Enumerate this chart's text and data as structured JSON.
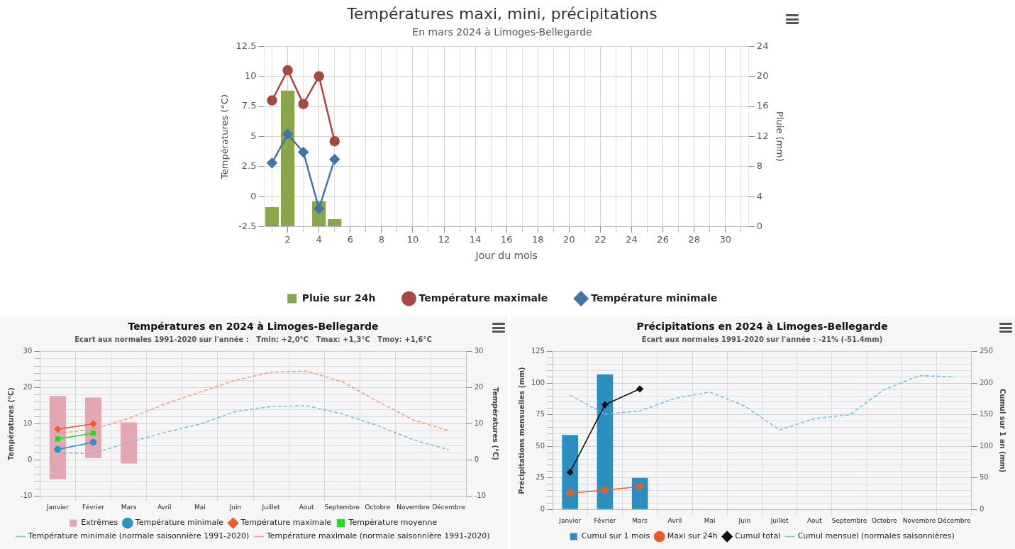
{
  "chart_data": [
    {
      "type": "line",
      "title": "Températures maxi, mini, précipitations",
      "subtitle": "En mars 2024 à Limoges-Bellegarde",
      "xlabel": "Jour du mois",
      "ylabel": "Températures (°C)",
      "y2label": "Pluie (mm)",
      "x": [
        1,
        2,
        3,
        4,
        5
      ],
      "xlim": [
        0.5,
        31.5
      ],
      "xticks": [
        {
          "value": 1,
          "label": null
        },
        2,
        {
          "value": 3,
          "label": null
        },
        4,
        {
          "value": 5,
          "label": null
        },
        6,
        {
          "value": 7,
          "label": null
        },
        8,
        {
          "value": 9,
          "label": null
        },
        10,
        {
          "value": 11,
          "label": null
        },
        12,
        {
          "value": 13,
          "label": null
        },
        14,
        {
          "value": 15,
          "label": null
        },
        16,
        {
          "value": 17,
          "label": null
        },
        18,
        {
          "value": 19,
          "label": null
        },
        20,
        {
          "value": 21,
          "label": null
        },
        22,
        {
          "value": 23,
          "label": null
        },
        24,
        {
          "value": 25,
          "label": null
        },
        26,
        {
          "value": 27,
          "label": null
        },
        28,
        {
          "value": 29,
          "label": null
        },
        30,
        {
          "value": 31,
          "label": null
        }
      ],
      "ylim": [
        -2.5,
        12.5
      ],
      "yticks": [
        -2.5,
        0,
        2.5,
        5,
        7.5,
        10,
        12.5
      ],
      "y2lim": [
        0,
        24
      ],
      "y2ticks": [
        0,
        4,
        8,
        12,
        16,
        20,
        24
      ],
      "grid": true,
      "legend": "bottom",
      "series": [
        {
          "name": "Pluie sur 24h",
          "type": "bar",
          "axis": "y2",
          "color": "#8aa64a",
          "values": [
            2.6,
            18.1,
            0,
            3.4,
            1.0
          ]
        },
        {
          "name": "Température maximale",
          "color": "#aa4643",
          "marker": "circle",
          "values": [
            8.0,
            10.5,
            7.7,
            10.0,
            4.6
          ]
        },
        {
          "name": "Température minimale",
          "color": "#4572a7",
          "marker": "diamond",
          "values": [
            2.8,
            5.2,
            3.7,
            -1.0,
            3.1
          ]
        }
      ]
    },
    {
      "type": "line",
      "title": "Températures en 2024 à Limoges-Bellegarde",
      "subtitle": "Ecart aux normales 1991-2020 sur l'année :   Tmin: +2,0°C   Tmax: +1,3°C   Tmoy: +1,6°C",
      "ylabel": "Températures (°C)",
      "y2label": "Températures (°C)",
      "categories": [
        "Janvier",
        "Février",
        "Mars",
        "Avril",
        "Mai",
        "Juin",
        "Juillet",
        "Aout",
        "Septembre",
        "Octobre",
        "Novembre",
        "Décembre"
      ],
      "ylim": [
        -10,
        30
      ],
      "yticks": [
        -10,
        {
          "value": -8,
          "label": null
        },
        {
          "value": -6,
          "label": null
        },
        {
          "value": -4,
          "label": null
        },
        {
          "value": -2,
          "label": null
        },
        0,
        {
          "value": 2,
          "label": null
        },
        {
          "value": 4,
          "label": null
        },
        {
          "value": 6,
          "label": null
        },
        {
          "value": 8,
          "label": null
        },
        10,
        {
          "value": 12,
          "label": null
        },
        {
          "value": 14,
          "label": null
        },
        {
          "value": 16,
          "label": null
        },
        {
          "value": 18,
          "label": null
        },
        20,
        {
          "value": 22,
          "label": null
        },
        {
          "value": 24,
          "label": null
        },
        {
          "value": 26,
          "label": null
        },
        {
          "value": 28,
          "label": null
        },
        30
      ],
      "y2lim": [
        -10,
        30
      ],
      "y2ticks": [
        -10,
        0,
        10,
        20,
        30
      ],
      "grid": true,
      "legend": "bottom",
      "series": [
        {
          "name": "Extrêmes",
          "type": "bar",
          "color": "#e3a6b3",
          "base": [
            -5.4,
            0.5,
            -1.0,
            null,
            null,
            null,
            null,
            null,
            null,
            null,
            null,
            null
          ],
          "values": [
            23.1,
            16.8,
            11.4,
            null,
            null,
            null,
            null,
            null,
            null,
            null,
            null,
            null
          ]
        },
        {
          "name": "Température minimale",
          "color": "#2b95c9",
          "marker": "circle",
          "values": [
            2.9,
            4.9,
            null,
            null,
            null,
            null,
            null,
            null,
            null,
            null,
            null,
            null
          ]
        },
        {
          "name": "Température maximale",
          "color": "#f05a28",
          "marker": "diamond",
          "values": [
            8.5,
            10.0,
            null,
            null,
            null,
            null,
            null,
            null,
            null,
            null,
            null,
            null
          ]
        },
        {
          "name": "Température moyenne",
          "color": "#22dd22",
          "marker": "square",
          "values": [
            5.8,
            7.4,
            null,
            null,
            null,
            null,
            null,
            null,
            null,
            null,
            null,
            null
          ]
        },
        {
          "name": "Température minimale (normale saisonnière 1991-2020)",
          "color": "#7cc0dd",
          "marker": "none",
          "line_style": "dashed",
          "values": [
            2.0,
            1.8,
            4.8,
            7.6,
            9.9,
            13.4,
            14.8,
            15.0,
            12.8,
            9.5,
            5.6,
            2.8
          ]
        },
        {
          "name": "Température maximale (normale saisonnière 1991-2020)",
          "color": "#f4a080",
          "marker": "none",
          "line_style": "dashed",
          "values": [
            7.3,
            8.5,
            11.5,
            15.4,
            18.8,
            22.1,
            24.3,
            24.6,
            21.7,
            16.2,
            11.1,
            8.1
          ]
        }
      ]
    },
    {
      "type": "line",
      "title": "Précipitations en 2024 à Limoges-Bellegarde",
      "subtitle": "Ecart aux normales 1991-2020 sur l'année : -21% (-51.4mm)",
      "ylabel": "Précipitations mensuelles (mm)",
      "y2label": "Cumul sur 1 an (mm)",
      "categories": [
        "Janvier",
        "Février",
        "Mars",
        "Avril",
        "Mai",
        "Juin",
        "Juillet",
        "Aout",
        "Septembre",
        "Octobre",
        "Novembre",
        "Décembre"
      ],
      "ylim": [
        0,
        125
      ],
      "yticks": [
        0,
        {
          "value": 5,
          "label": null
        },
        {
          "value": 10,
          "label": null
        },
        {
          "value": 15,
          "label": null
        },
        {
          "value": 20,
          "label": null
        },
        25,
        {
          "value": 30,
          "label": null
        },
        {
          "value": 35,
          "label": null
        },
        {
          "value": 40,
          "label": null
        },
        {
          "value": 45,
          "label": null
        },
        50,
        {
          "value": 55,
          "label": null
        },
        {
          "value": 60,
          "label": null
        },
        {
          "value": 65,
          "label": null
        },
        {
          "value": 70,
          "label": null
        },
        75,
        {
          "value": 80,
          "label": null
        },
        {
          "value": 85,
          "label": null
        },
        {
          "value": 90,
          "label": null
        },
        {
          "value": 95,
          "label": null
        },
        100,
        {
          "value": 105,
          "label": null
        },
        {
          "value": 110,
          "label": null
        },
        {
          "value": 115,
          "label": null
        },
        {
          "value": 120,
          "label": null
        },
        125
      ],
      "y2lim": [
        0,
        250
      ],
      "y2ticks": [
        0,
        50,
        100,
        150,
        200,
        250
      ],
      "grid": true,
      "legend": "bottom",
      "series": [
        {
          "name": "Cumul sur 1 mois",
          "type": "bar",
          "color": "#2a8fc0",
          "values": [
            59,
            107,
            25,
            null,
            null,
            null,
            null,
            null,
            null,
            null,
            null,
            null
          ]
        },
        {
          "name": "Maxi sur 24h",
          "color": "#f05a28",
          "marker": "circle",
          "values": [
            12.9,
            15.3,
            18.1,
            null,
            null,
            null,
            null,
            null,
            null,
            null,
            null,
            null
          ]
        },
        {
          "name": "Cumul total",
          "color": "#111111",
          "marker": "diamond",
          "axis": "y2",
          "values": [
            59,
            166,
            191,
            null,
            null,
            null,
            null,
            null,
            null,
            null,
            null,
            null
          ]
        },
        {
          "name": "Cumul mensuel (normales saisonnières)",
          "color": "#7cc0dd",
          "marker": "none",
          "line_style": "dashed",
          "values": [
            90.5,
            75.5,
            78,
            88,
            93,
            82,
            63,
            72,
            75,
            95,
            106,
            105
          ]
        }
      ]
    }
  ]
}
